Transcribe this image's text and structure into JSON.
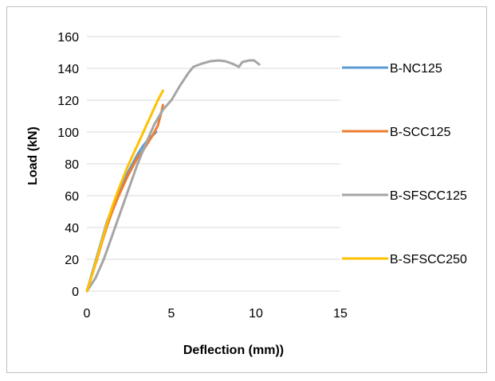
{
  "chart_data": {
    "type": "line",
    "title": "",
    "xlabel": "Deflection (mm))",
    "ylabel": "Load (kN)",
    "xlim": [
      0,
      15
    ],
    "ylim": [
      0,
      160
    ],
    "xticks": [
      0,
      5,
      10,
      15
    ],
    "yticks": [
      0,
      20,
      40,
      60,
      80,
      100,
      120,
      140,
      160
    ],
    "grid": "horizontal",
    "legend_position": "right",
    "series": [
      {
        "name": "B-NC125",
        "color": "#5b9bd5",
        "x": [
          0,
          0.3,
          0.6,
          0.9,
          1.2,
          1.5,
          1.8,
          2.1,
          2.4,
          2.7,
          3.0,
          3.3,
          3.6,
          3.9,
          4.1
        ],
        "y": [
          0,
          11,
          22,
          33,
          44,
          52,
          60,
          67,
          74,
          80,
          86,
          91,
          95,
          98,
          100
        ]
      },
      {
        "name": "B-SCC125",
        "color": "#ed7d31",
        "x": [
          0,
          0.3,
          0.6,
          0.9,
          1.2,
          1.5,
          1.8,
          2.1,
          2.4,
          2.7,
          3.0,
          3.3,
          3.6,
          3.9,
          4.2,
          4.4,
          4.5
        ],
        "y": [
          0,
          10,
          20,
          31,
          41,
          50,
          58,
          65,
          72,
          78,
          84,
          88,
          93,
          98,
          104,
          112,
          117
        ]
      },
      {
        "name": "B-SFSCC125",
        "color": "#a5a5a5",
        "x": [
          0,
          0.5,
          1.0,
          1.5,
          2.0,
          2.5,
          3.0,
          3.5,
          4.0,
          4.5,
          5.0,
          5.5,
          6.0,
          6.3,
          6.8,
          7.3,
          7.8,
          8.2,
          8.6,
          9.0,
          9.2,
          9.6,
          9.9,
          10.2
        ],
        "y": [
          0,
          8,
          20,
          35,
          50,
          65,
          80,
          93,
          105,
          114,
          120,
          129,
          137,
          141,
          143,
          144.5,
          145,
          144.5,
          143,
          141,
          144,
          145,
          145,
          142.5
        ]
      },
      {
        "name": "B-SFSCC250",
        "color": "#ffc000",
        "x": [
          0,
          0.3,
          0.6,
          0.9,
          1.2,
          1.5,
          1.8,
          2.1,
          2.4,
          2.7,
          3.0,
          3.3,
          3.6,
          3.9,
          4.2,
          4.4,
          4.5
        ],
        "y": [
          0,
          10,
          21,
          32,
          43,
          53,
          62,
          70,
          78,
          85,
          92,
          99,
          106,
          113,
          120,
          124,
          126
        ]
      }
    ]
  }
}
